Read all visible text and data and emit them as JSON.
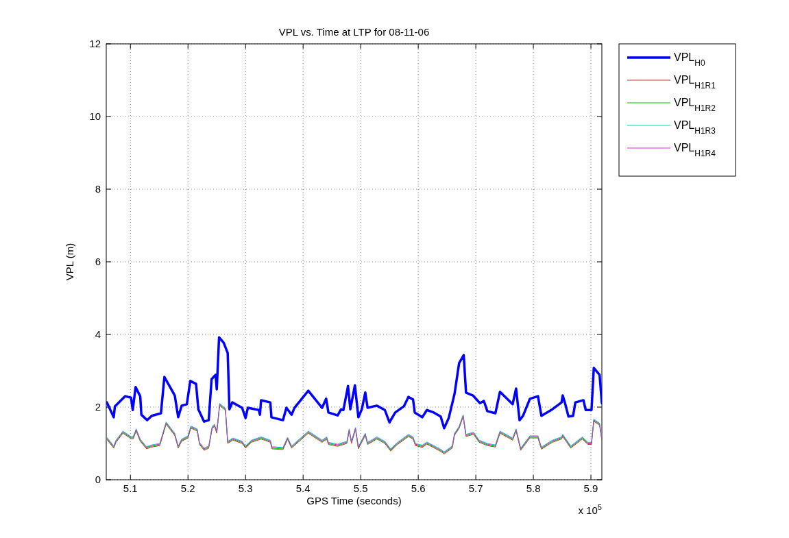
{
  "chart_data": {
    "type": "line",
    "title": "VPL vs. Time at LTP for 08-11-06",
    "xlabel": "GPS Time (seconds)",
    "ylabel": "VPL (m)",
    "annotations": [
      "x 10$^{5}$"
    ],
    "xlim": [
      5.058,
      5.919
    ],
    "xticks": [
      5.1,
      5.2,
      5.3,
      5.4,
      5.5,
      5.6,
      5.7,
      5.8,
      5.9
    ],
    "ylim": [
      0,
      12
    ],
    "yticks": [
      0,
      2,
      4,
      6,
      8,
      10,
      12
    ],
    "grid": true,
    "legend": "top right",
    "line_style": "solid",
    "marker": "none",
    "x": [
      5.059,
      5.071,
      5.075,
      5.087,
      5.101,
      5.105,
      5.11,
      5.117,
      5.128,
      5.137,
      5.151,
      5.162,
      5.177,
      5.183,
      5.189,
      5.2,
      5.205,
      5.216,
      5.22,
      5.228,
      5.236,
      5.242,
      5.246,
      5.25,
      5.255,
      5.265,
      5.269,
      5.278,
      5.294,
      5.3,
      5.31,
      5.327,
      5.343,
      5.346,
      5.365,
      5.373,
      5.38,
      5.409,
      5.433,
      5.441,
      5.444,
      5.46,
      5.476,
      5.48,
      5.484,
      5.491,
      5.496,
      5.508,
      5.512,
      5.528,
      5.542,
      5.552,
      5.564,
      5.583,
      5.591,
      5.595,
      5.607,
      5.615,
      5.639,
      5.645,
      5.659,
      5.663,
      5.671,
      5.678,
      5.683,
      5.696,
      5.706,
      5.72,
      5.734,
      5.742,
      5.764,
      5.77,
      5.778,
      5.794,
      5.808,
      5.814,
      5.833,
      5.849,
      5.851,
      5.865,
      5.885,
      5.895,
      5.901,
      5.905,
      5.915,
      5.919
    ],
    "series": [
      {
        "name": "VPL$_{H0}$",
        "color": "#0000ff",
        "x": [
          5.059,
          5.071,
          5.073,
          5.091,
          5.101,
          5.104,
          5.109,
          5.117,
          5.119,
          5.129,
          5.137,
          5.153,
          5.159,
          5.177,
          5.183,
          5.189,
          5.198,
          5.204,
          5.214,
          5.218,
          5.228,
          5.236,
          5.241,
          5.248,
          5.25,
          5.254,
          5.262,
          5.269,
          5.272,
          5.277,
          5.294,
          5.3,
          5.304,
          5.323,
          5.325,
          5.327,
          5.343,
          5.345,
          5.365,
          5.371,
          5.38,
          5.385,
          5.409,
          5.433,
          5.44,
          5.444,
          5.46,
          5.466,
          5.47,
          5.478,
          5.482,
          5.49,
          5.496,
          5.502,
          5.508,
          5.512,
          5.528,
          5.542,
          5.55,
          5.56,
          5.575,
          5.583,
          5.591,
          5.594,
          5.607,
          5.615,
          5.627,
          5.639,
          5.645,
          5.653,
          5.663,
          5.671,
          5.679,
          5.683,
          5.695,
          5.707,
          5.714,
          5.72,
          5.734,
          5.742,
          5.764,
          5.77,
          5.776,
          5.782,
          5.794,
          5.808,
          5.814,
          5.833,
          5.849,
          5.851,
          5.855,
          5.861,
          5.869,
          5.873,
          5.887,
          5.891,
          5.901,
          5.905,
          5.915,
          5.919
        ],
        "values": [
          2.13,
          1.72,
          2.02,
          2.3,
          2.26,
          1.92,
          2.55,
          2.3,
          1.79,
          1.64,
          1.76,
          1.83,
          2.83,
          2.32,
          1.72,
          2.04,
          2.08,
          2.72,
          2.64,
          1.94,
          1.6,
          1.64,
          2.77,
          2.89,
          2.49,
          3.92,
          3.77,
          3.49,
          1.94,
          2.13,
          1.98,
          1.7,
          1.98,
          1.92,
          1.79,
          2.19,
          2.13,
          1.72,
          1.64,
          1.98,
          1.79,
          1.98,
          2.45,
          1.98,
          2.23,
          1.85,
          1.77,
          1.94,
          1.92,
          2.58,
          1.94,
          2.6,
          1.72,
          1.94,
          2.4,
          1.98,
          2.04,
          1.92,
          1.58,
          1.85,
          2.02,
          2.28,
          2.21,
          1.85,
          1.72,
          1.92,
          1.85,
          1.74,
          1.42,
          1.7,
          2.36,
          3.21,
          3.43,
          2.4,
          2.32,
          2.11,
          2.17,
          1.89,
          1.83,
          2.42,
          2.08,
          2.51,
          1.64,
          1.76,
          2.23,
          2.3,
          1.76,
          1.94,
          2.13,
          2.32,
          2.11,
          1.74,
          1.76,
          2.13,
          2.19,
          1.92,
          1.92,
          3.08,
          2.89,
          2.11
        ]
      },
      {
        "name": "VPL$_{H1R1}$",
        "color": "#c83232",
        "values": [
          1.11,
          0.87,
          1.03,
          1.28,
          1.13,
          1.13,
          1.34,
          1.06,
          0.85,
          0.9,
          0.94,
          1.53,
          1.22,
          0.87,
          1.06,
          1.15,
          1.42,
          1.34,
          0.97,
          0.81,
          0.87,
          1.41,
          1.47,
          1.28,
          2.04,
          1.91,
          1,
          1.09,
          1,
          0.87,
          1.03,
          1.12,
          1.03,
          0.85,
          0.83,
          1.11,
          0.87,
          1.28,
          1.03,
          1.12,
          0.97,
          0.92,
          1,
          1.34,
          1,
          1.38,
          0.85,
          1.22,
          0.97,
          1.12,
          1,
          0.79,
          0.97,
          1.19,
          1.12,
          0.94,
          0.89,
          0.98,
          0.78,
          0.71,
          0.87,
          1.22,
          1.41,
          1.73,
          1.19,
          1.25,
          1.03,
          0.94,
          0.9,
          1.28,
          1.09,
          1.34,
          0.81,
          1.15,
          1.15,
          0.84,
          1.03,
          1.12,
          1.19,
          0.87,
          1.12,
          0.97,
          0.97,
          1.61,
          1.5,
          1.09
        ]
      },
      {
        "name": "VPL$_{H1R2}$",
        "color": "#00cc00",
        "values": [
          1.13,
          0.89,
          1.05,
          1.3,
          1.15,
          1.15,
          1.36,
          1.08,
          0.87,
          0.92,
          0.96,
          1.55,
          1.24,
          0.89,
          1.08,
          1.17,
          1.44,
          1.36,
          0.99,
          0.83,
          0.89,
          1.43,
          1.49,
          1.3,
          2.06,
          1.93,
          1.02,
          1.11,
          1.02,
          0.89,
          1.05,
          1.14,
          1.05,
          0.87,
          0.85,
          1.13,
          0.89,
          1.3,
          1.05,
          1.14,
          0.99,
          0.94,
          1.02,
          1.36,
          1.02,
          1.4,
          0.87,
          1.24,
          0.99,
          1.14,
          1.02,
          0.81,
          0.99,
          1.21,
          1.14,
          0.96,
          0.91,
          1,
          0.8,
          0.73,
          0.89,
          1.24,
          1.43,
          1.75,
          1.21,
          1.27,
          1.05,
          0.96,
          0.92,
          1.3,
          1.11,
          1.36,
          0.83,
          1.17,
          1.17,
          0.86,
          1.05,
          1.14,
          1.21,
          0.89,
          1.14,
          0.99,
          0.99,
          1.63,
          1.52,
          1.11
        ]
      },
      {
        "name": "VPL$_{H1R3}$",
        "color": "#00cccc",
        "values": [
          1.17,
          0.93,
          1.09,
          1.34,
          1.19,
          1.19,
          1.4,
          1.12,
          0.91,
          0.96,
          1,
          1.59,
          1.28,
          0.93,
          1.12,
          1.21,
          1.48,
          1.4,
          1.03,
          0.87,
          0.93,
          1.47,
          1.53,
          1.34,
          2.1,
          1.97,
          1.06,
          1.15,
          1.06,
          0.93,
          1.09,
          1.18,
          1.09,
          0.91,
          0.89,
          1.17,
          0.93,
          1.34,
          1.09,
          1.18,
          1.03,
          0.98,
          1.06,
          1.4,
          1.06,
          1.44,
          0.91,
          1.28,
          1.03,
          1.18,
          1.06,
          0.85,
          1.03,
          1.25,
          1.18,
          1,
          0.95,
          1.04,
          0.84,
          0.77,
          0.93,
          1.28,
          1.47,
          1.79,
          1.25,
          1.31,
          1.09,
          1,
          0.96,
          1.34,
          1.15,
          1.4,
          0.87,
          1.21,
          1.21,
          0.9,
          1.09,
          1.18,
          1.25,
          0.93,
          1.18,
          1.03,
          1.03,
          1.67,
          1.56,
          1.15
        ]
      },
      {
        "name": "VPL$_{H1R4}$",
        "color": "#cc33cc",
        "values": [
          1.15,
          0.91,
          1.07,
          1.32,
          1.17,
          1.17,
          1.38,
          1.1,
          0.89,
          0.94,
          0.98,
          1.57,
          1.26,
          0.91,
          1.1,
          1.19,
          1.46,
          1.38,
          1.01,
          0.85,
          0.91,
          1.45,
          1.51,
          1.32,
          2.08,
          1.95,
          1.04,
          1.13,
          1.04,
          0.91,
          1.07,
          1.16,
          1.07,
          0.89,
          0.87,
          1.15,
          0.91,
          1.32,
          1.07,
          1.16,
          1.01,
          0.96,
          1.04,
          1.38,
          1.04,
          1.42,
          0.89,
          1.26,
          1.01,
          1.16,
          1.04,
          0.83,
          1.01,
          1.23,
          1.16,
          0.98,
          0.93,
          1.02,
          0.82,
          0.75,
          0.91,
          1.26,
          1.45,
          1.77,
          1.23,
          1.29,
          1.07,
          0.98,
          0.94,
          1.32,
          1.13,
          1.38,
          0.85,
          1.19,
          1.19,
          0.88,
          1.07,
          1.16,
          1.23,
          0.91,
          1.16,
          1.01,
          1.01,
          1.65,
          1.54,
          1.13
        ]
      }
    ]
  }
}
